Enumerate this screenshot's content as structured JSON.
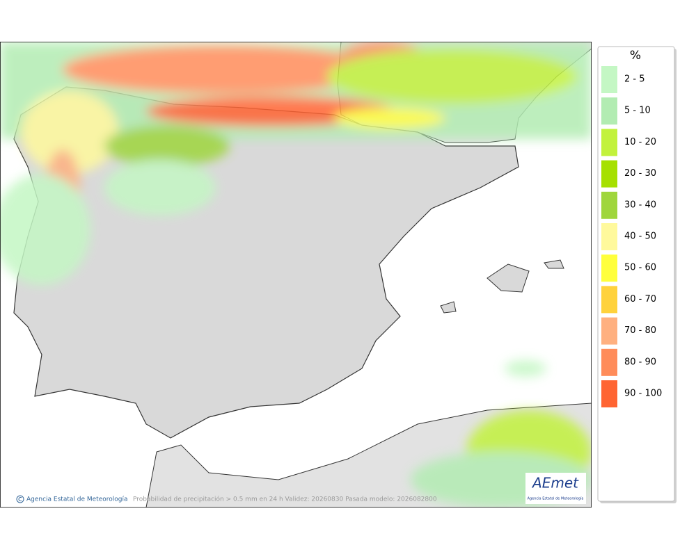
{
  "legend": {
    "title": "%",
    "items": [
      {
        "label": "2 - 5",
        "color": "#c4f7c4"
      },
      {
        "label": "5 - 10",
        "color": "#b2ecb2"
      },
      {
        "label": "10 - 20",
        "color": "#c2f23c"
      },
      {
        "label": "20 - 30",
        "color": "#a6e000"
      },
      {
        "label": "30 - 40",
        "color": "#9fd63c"
      },
      {
        "label": "40 - 50",
        "color": "#fff99c"
      },
      {
        "label": "50 - 60",
        "color": "#ffff3c"
      },
      {
        "label": "60 - 70",
        "color": "#ffd23c"
      },
      {
        "label": "70 - 80",
        "color": "#ffb080"
      },
      {
        "label": "80 - 90",
        "color": "#ff8c5a"
      },
      {
        "label": "90 - 100",
        "color": "#ff6432"
      }
    ]
  },
  "footer": {
    "credit": "Agencia Estatal de Meteorología",
    "caption": "Probabilidad de precipitación > 0.5 mm en 24 h Validez: 20260830 Pasada modelo: 2026082800"
  },
  "logo": {
    "name": "AEmet",
    "subtitle": "Agencia Estatal de Meteorología"
  }
}
